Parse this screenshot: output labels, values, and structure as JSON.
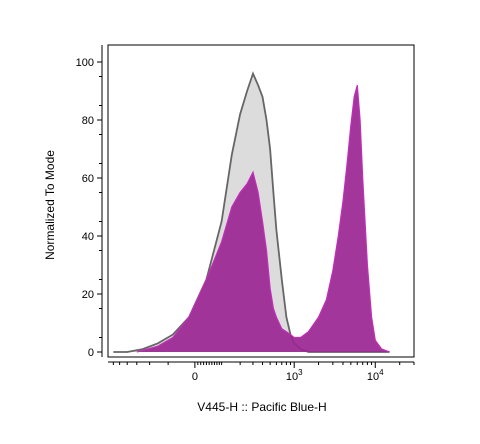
{
  "chart_data": {
    "type": "area",
    "xlabel": "V445-H :: Pacific Blue-H",
    "ylabel": "Normalized To Mode",
    "x_scale": "biexponential",
    "ylim": [
      0,
      100
    ],
    "y_ticks": [
      "0",
      "20",
      "40",
      "60",
      "80",
      "100"
    ],
    "x_ticks": [
      {
        "base": "0",
        "exp": ""
      },
      {
        "base": "10",
        "exp": "3"
      },
      {
        "base": "10",
        "exp": "4"
      }
    ],
    "grid": false,
    "legend": "none",
    "series": [
      {
        "color_fill": "#dcdcdc",
        "color_line": "#666666",
        "x": [
          -600,
          -400,
          -250,
          -150,
          -80,
          -20,
          40,
          100,
          150,
          200,
          250,
          300,
          350,
          400,
          450,
          500,
          550,
          600,
          700,
          800,
          900,
          1000,
          1200,
          1500,
          2000,
          4000,
          8000,
          15000
        ],
        "y": [
          0,
          0,
          1,
          3,
          6,
          12,
          25,
          45,
          68,
          82,
          90,
          96,
          92,
          88,
          80,
          70,
          55,
          42,
          25,
          12,
          6,
          3,
          1,
          0,
          0,
          0,
          0,
          0
        ]
      },
      {
        "color_fill": "#9b2592",
        "color_line": "#c12fb8",
        "x": [
          -300,
          -150,
          -80,
          -20,
          40,
          100,
          150,
          200,
          250,
          300,
          350,
          400,
          450,
          500,
          550,
          600,
          700,
          800,
          900,
          1000,
          1200,
          1500,
          2000,
          2500,
          3000,
          3500,
          4000,
          4500,
          5000,
          5500,
          6000,
          6500,
          7000,
          8000,
          9000,
          10000,
          12000,
          15000
        ],
        "y": [
          0,
          2,
          5,
          12,
          25,
          38,
          50,
          55,
          58,
          62,
          55,
          45,
          35,
          22,
          15,
          12,
          8,
          7,
          6,
          5,
          5,
          7,
          12,
          18,
          28,
          40,
          52,
          65,
          78,
          88,
          92,
          80,
          60,
          30,
          12,
          4,
          1,
          0
        ]
      }
    ]
  }
}
